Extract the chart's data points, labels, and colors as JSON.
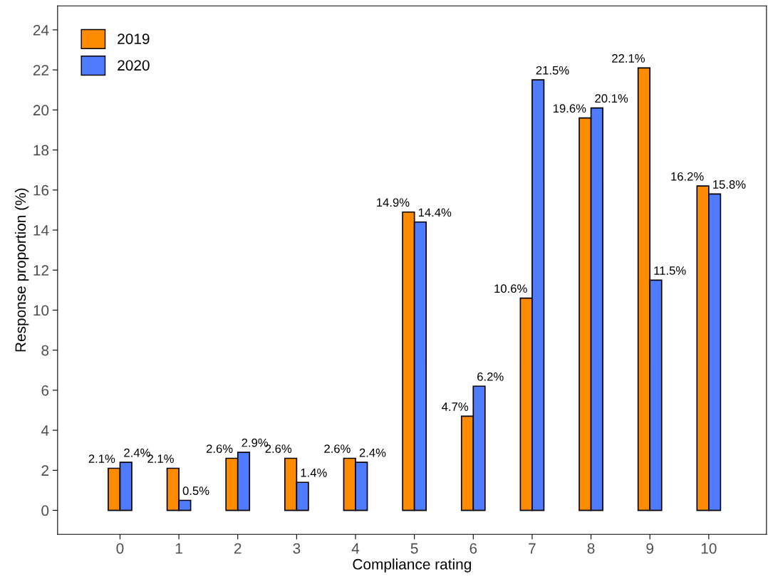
{
  "chart_data": {
    "type": "bar",
    "xlabel": "Compliance rating",
    "ylabel": "Response proportion (%)",
    "categories": [
      "0",
      "1",
      "2",
      "3",
      "4",
      "5",
      "6",
      "7",
      "8",
      "9",
      "10"
    ],
    "series": [
      {
        "name": "2019",
        "color": "#ff8c00",
        "values": [
          2.1,
          2.1,
          2.6,
          2.6,
          2.6,
          14.9,
          4.7,
          10.6,
          19.6,
          22.1,
          16.2
        ],
        "value_labels": [
          "2.1%",
          "2.1%",
          "2.6%",
          "2.6%",
          "2.6%",
          "14.9%",
          "4.7%",
          "10.6%",
          "19.6%",
          "22.1%",
          "16.2%"
        ]
      },
      {
        "name": "2020",
        "color": "#4f7cff",
        "values": [
          2.4,
          0.5,
          2.9,
          1.4,
          2.4,
          14.4,
          6.2,
          21.5,
          20.1,
          11.5,
          15.8
        ],
        "value_labels": [
          "2.4%",
          "0.5%",
          "2.9%",
          "1.4%",
          "2.4%",
          "14.4%",
          "6.2%",
          "21.5%",
          "20.1%",
          "11.5%",
          "15.8%"
        ]
      }
    ],
    "ylim": [
      -1.2,
      25.2
    ],
    "yticks": [
      0,
      2,
      4,
      6,
      8,
      10,
      12,
      14,
      16,
      18,
      20,
      22,
      24
    ],
    "grid": false,
    "legend": "top left"
  }
}
